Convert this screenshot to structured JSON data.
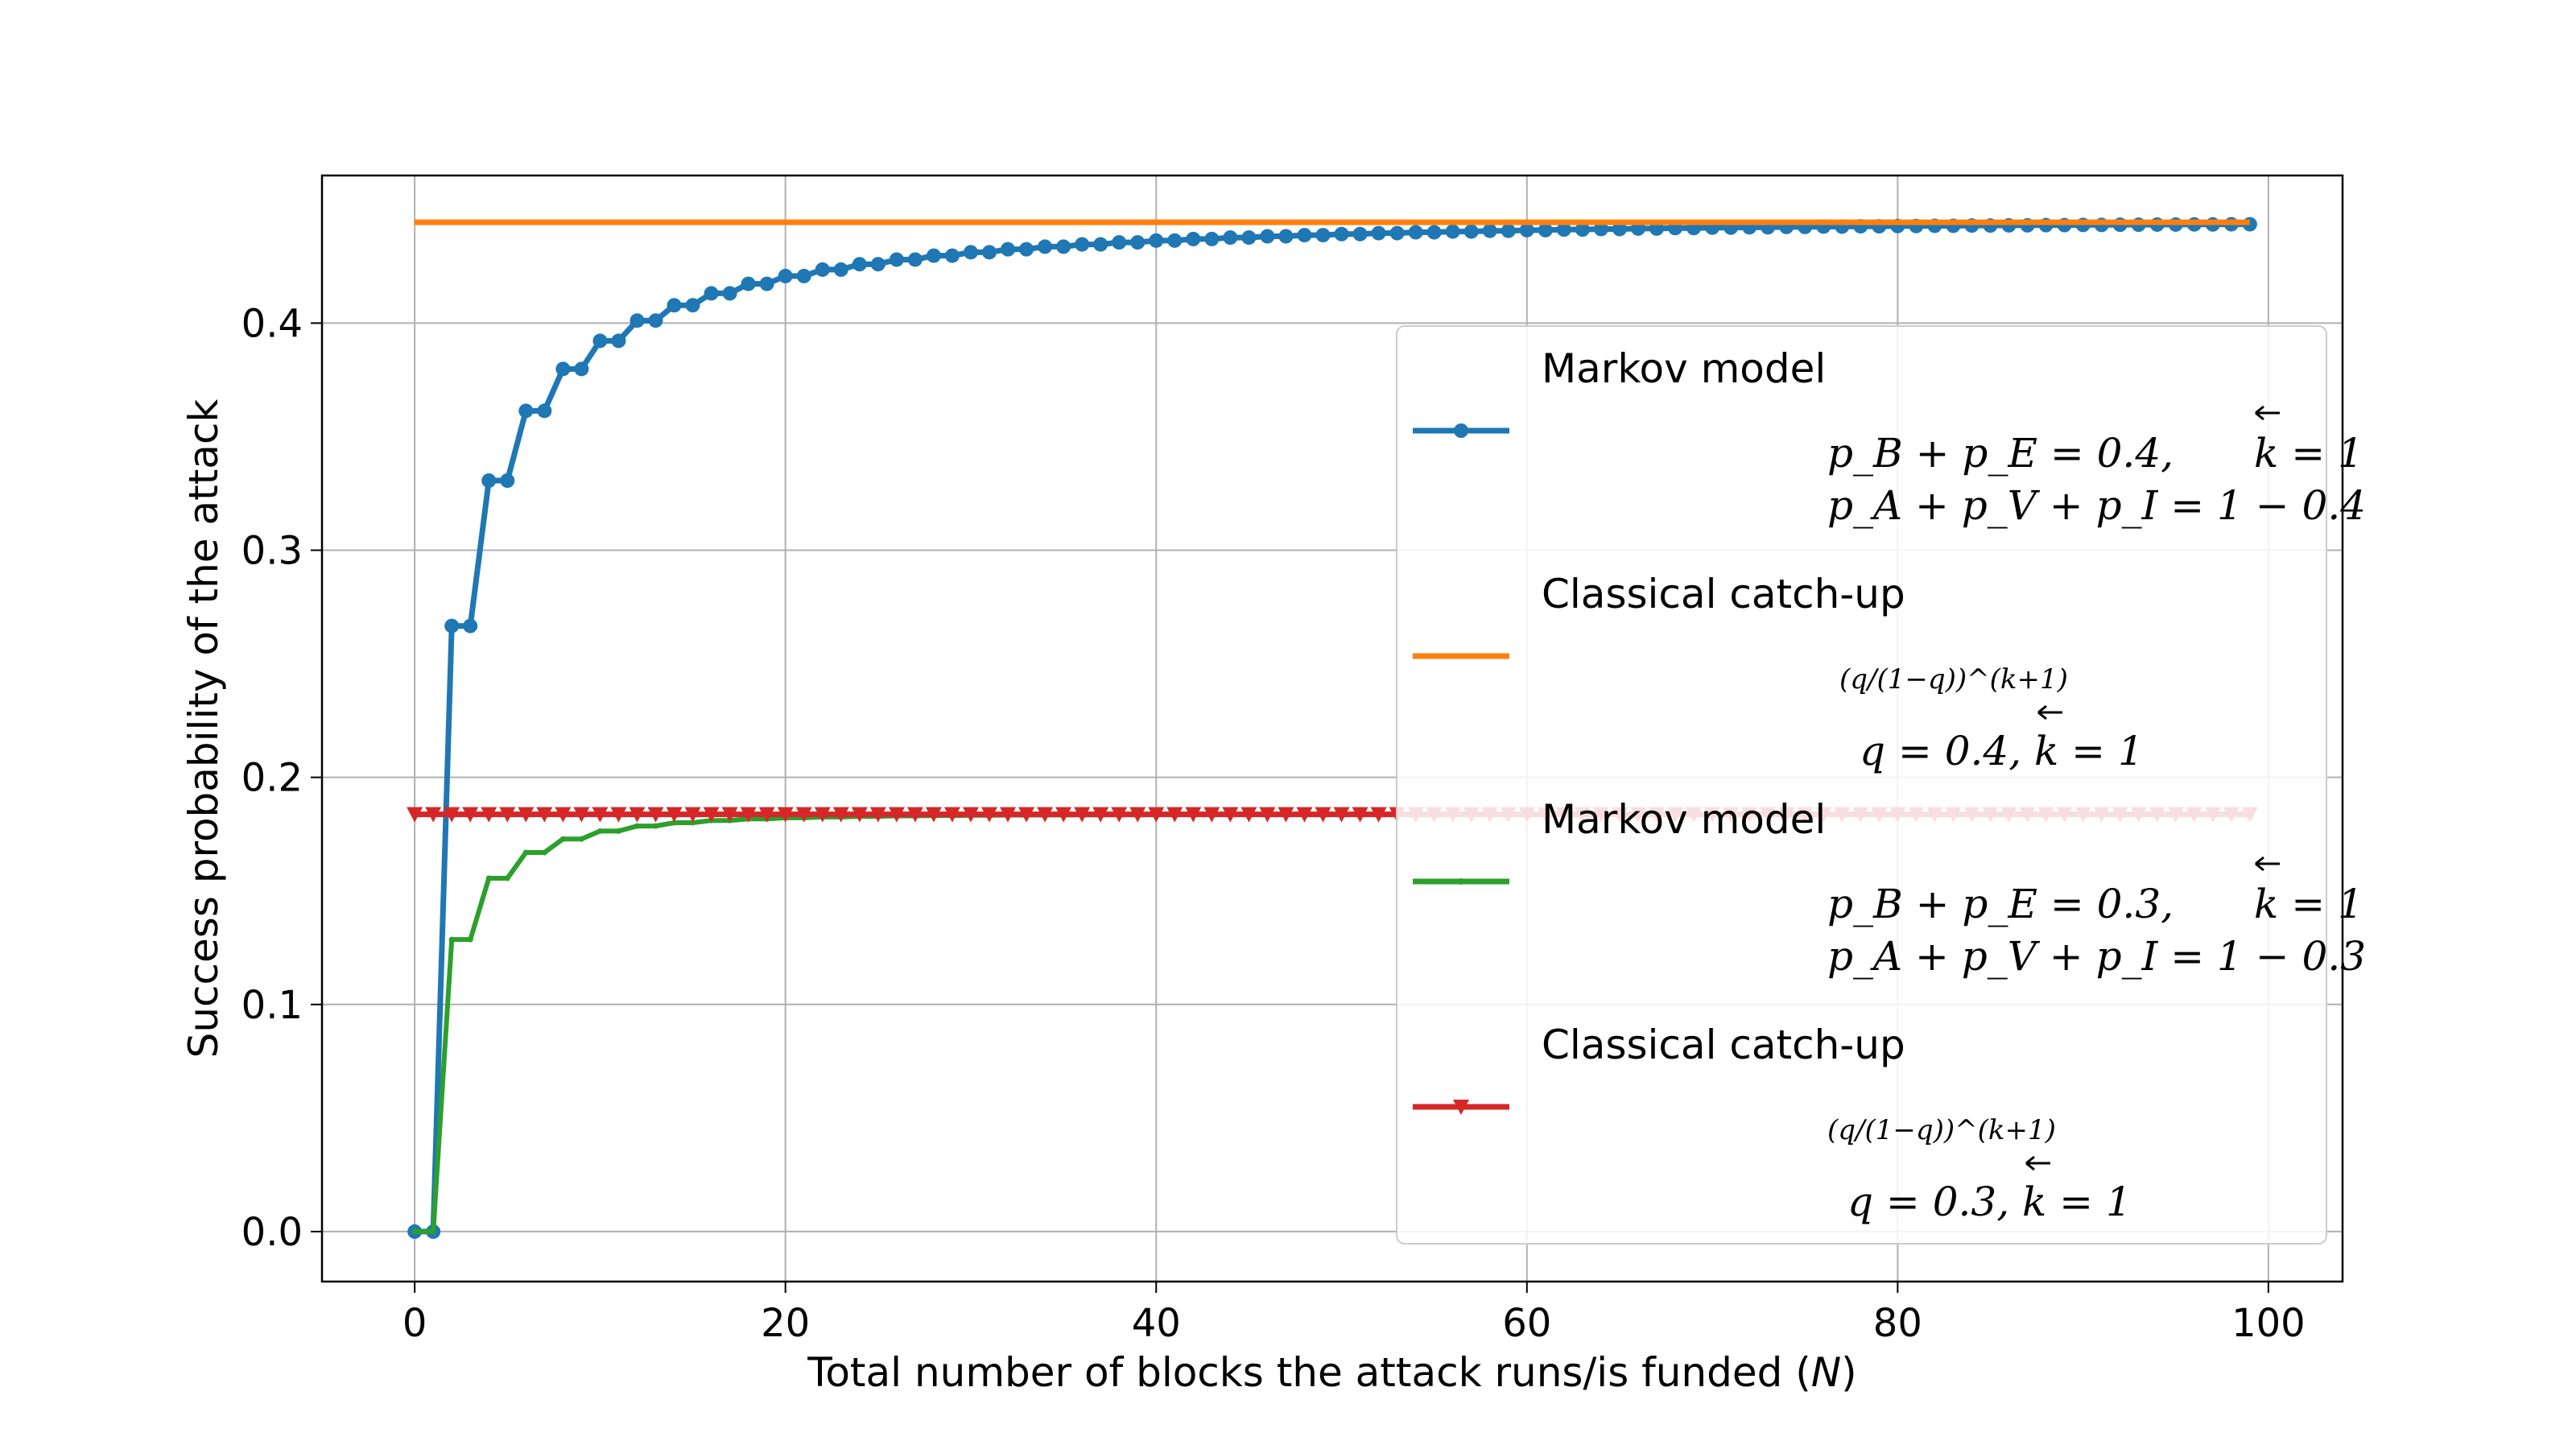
{
  "chart_data": {
    "type": "line",
    "xlabel": "Total number of blocks the attack runs/is funded (N)",
    "ylabel": "Success probability of the attack",
    "xlim": [
      -5,
      104
    ],
    "ylim": [
      -0.022,
      0.465
    ],
    "xticks": [
      0,
      20,
      40,
      60,
      80,
      100
    ],
    "yticks": [
      0.0,
      0.1,
      0.2,
      0.3,
      0.4
    ],
    "xtick_labels": [
      "0",
      "20",
      "40",
      "60",
      "80",
      "100"
    ],
    "ytick_labels": [
      "0.0",
      "0.1",
      "0.2",
      "0.3",
      "0.4"
    ],
    "grid": true,
    "legend_position": "right",
    "series": [
      {
        "name": "Markov model",
        "legend_lines": [
          "Markov model",
          "p_B + p_E = 0.4, k = 1",
          "p_A + p_V + p_I = 1 − 0.4"
        ],
        "color": "#1f77b4",
        "marker": "circle",
        "model": "markov",
        "q": 0.4,
        "k": 1,
        "x_range": [
          0,
          99
        ]
      },
      {
        "name": "Classical catch-up",
        "legend_lines": [
          "Classical catch-up",
          "(q/(1−q))^(k+1)",
          "q = 0.4, k = 1"
        ],
        "color": "#ff7f0e",
        "marker": "none",
        "model": "constant",
        "value": 0.4444,
        "x_range": [
          0,
          99
        ]
      },
      {
        "name": "Markov model",
        "legend_lines": [
          "Markov model",
          "p_B + p_E = 0.3, k = 1",
          "p_A + p_V + p_I = 1 − 0.3"
        ],
        "color": "#2ca02c",
        "marker": "point",
        "model": "markov",
        "q": 0.3,
        "k": 1,
        "x_range": [
          0,
          99
        ]
      },
      {
        "name": "Classical catch-up",
        "legend_lines": [
          "Classical catch-up",
          "(q/(1−q))^(k+1)",
          "q = 0.3, k = 1"
        ],
        "color": "#d62728",
        "marker": "triangle-down",
        "model": "constant",
        "value": 0.1837,
        "x_range": [
          0,
          99
        ]
      }
    ]
  }
}
